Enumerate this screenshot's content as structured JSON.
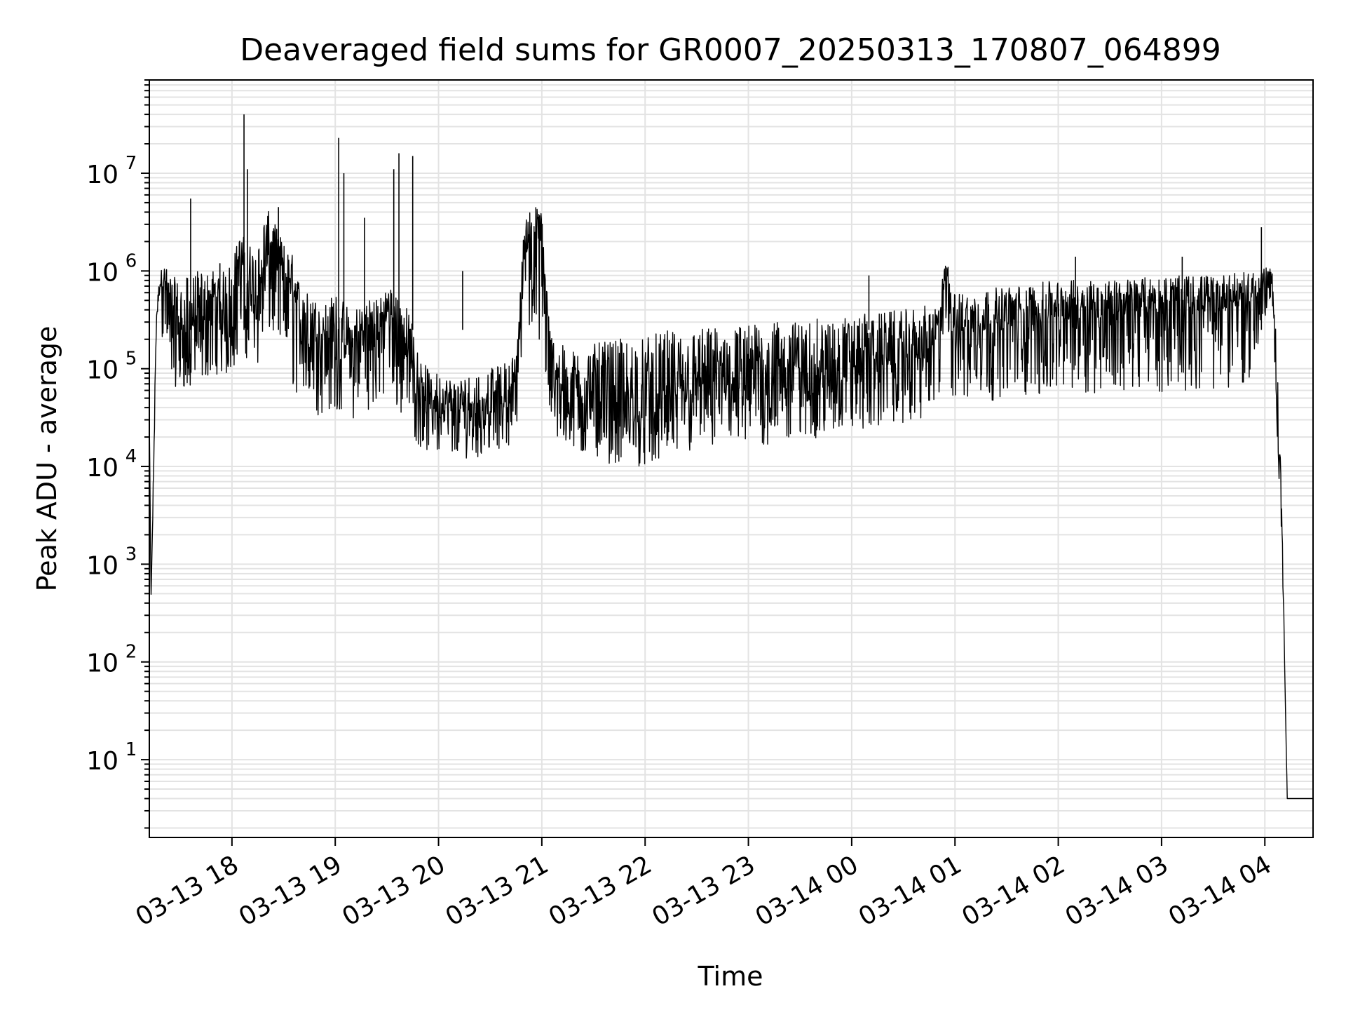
{
  "chart_data": {
    "type": "line",
    "title": "Deaveraged field sums for GR0007_20250313_170807_064899",
    "xlabel": "Time",
    "ylabel": "Peak ADU - average",
    "yscale": "log",
    "grid": true,
    "legend": "none",
    "line_color": "#000000",
    "xlim": [
      "2025-03-13 17:12",
      "2025-03-14 04:28"
    ],
    "ylim": [
      1.6,
      90000000
    ],
    "x_ticks": [
      "03-13 18",
      "03-13 19",
      "03-13 20",
      "03-13 21",
      "03-13 22",
      "03-13 23",
      "03-14 00",
      "03-14 01",
      "03-14 02",
      "03-14 03",
      "03-14 04"
    ],
    "y_ticks": [
      {
        "base": "10",
        "exp": "1"
      },
      {
        "base": "10",
        "exp": "2"
      },
      {
        "base": "10",
        "exp": "3"
      },
      {
        "base": "10",
        "exp": "4"
      },
      {
        "base": "10",
        "exp": "5"
      },
      {
        "base": "10",
        "exp": "6"
      },
      {
        "base": "10",
        "exp": "7"
      }
    ],
    "series": [
      {
        "x": [
          "2025-03-13 17:12",
          "2025-03-13 17:13",
          "2025-03-13 17:14",
          "2025-03-13 17:16",
          "2025-03-13 17:18",
          "2025-03-13 17:20",
          "2025-03-13 17:25",
          "2025-03-13 17:30",
          "2025-03-13 17:35",
          "2025-03-13 17:40",
          "2025-03-13 17:45",
          "2025-03-13 17:50",
          "2025-03-13 17:55",
          "2025-03-13 18:00",
          "2025-03-13 18:05",
          "2025-03-13 18:10",
          "2025-03-13 18:15",
          "2025-03-13 18:20",
          "2025-03-13 18:25",
          "2025-03-13 18:30",
          "2025-03-13 18:35",
          "2025-03-13 18:40",
          "2025-03-13 18:45",
          "2025-03-13 18:50",
          "2025-03-13 18:55",
          "2025-03-13 19:00",
          "2025-03-13 19:05",
          "2025-03-13 19:10",
          "2025-03-13 19:15",
          "2025-03-13 19:20",
          "2025-03-13 19:25",
          "2025-03-13 19:30",
          "2025-03-13 19:35",
          "2025-03-13 19:40",
          "2025-03-13 19:45",
          "2025-03-13 19:50",
          "2025-03-13 19:55",
          "2025-03-13 20:00",
          "2025-03-13 20:10",
          "2025-03-13 20:20",
          "2025-03-13 20:30",
          "2025-03-13 20:40",
          "2025-03-13 20:45",
          "2025-03-13 20:50",
          "2025-03-13 20:55",
          "2025-03-13 21:00",
          "2025-03-13 21:05",
          "2025-03-13 21:15",
          "2025-03-13 21:30",
          "2025-03-13 21:45",
          "2025-03-13 22:00",
          "2025-03-13 22:15",
          "2025-03-13 22:30",
          "2025-03-13 22:45",
          "2025-03-13 23:00",
          "2025-03-13 23:15",
          "2025-03-13 23:30",
          "2025-03-13 23:45",
          "2025-03-14 00:00",
          "2025-03-14 00:15",
          "2025-03-14 00:30",
          "2025-03-14 00:45",
          "2025-03-14 00:50",
          "2025-03-14 00:55",
          "2025-03-14 01:00",
          "2025-03-14 01:15",
          "2025-03-14 01:30",
          "2025-03-14 01:45",
          "2025-03-14 02:00",
          "2025-03-14 02:15",
          "2025-03-14 02:30",
          "2025-03-14 02:45",
          "2025-03-14 03:00",
          "2025-03-14 03:15",
          "2025-03-14 03:30",
          "2025-03-14 03:45",
          "2025-03-14 03:55",
          "2025-03-14 04:00",
          "2025-03-14 04:03",
          "2025-03-14 04:05",
          "2025-03-14 04:08",
          "2025-03-14 04:10",
          "2025-03-14 04:13",
          "2025-03-14 04:15",
          "2025-03-14 04:28"
        ],
        "y": [
          30000,
          450,
          3000,
          250000,
          600000,
          700000,
          300000,
          150000,
          120000,
          200000,
          250000,
          300000,
          200000,
          350000,
          800000,
          400000,
          300000,
          1500000,
          1200000,
          600000,
          500000,
          250000,
          200000,
          180000,
          150000,
          200000,
          120000,
          100000,
          150000,
          200000,
          180000,
          300000,
          250000,
          150000,
          90000,
          50000,
          40000,
          30000,
          25000,
          30000,
          35000,
          40000,
          60000,
          1500000,
          2000000,
          1500000,
          70000,
          40000,
          35000,
          30000,
          25000,
          30000,
          40000,
          50000,
          50000,
          55000,
          60000,
          70000,
          80000,
          90000,
          100000,
          130000,
          150000,
          1000000,
          200000,
          220000,
          250000,
          280000,
          300000,
          320000,
          330000,
          340000,
          350000,
          360000,
          370000,
          400000,
          500000,
          700000,
          800000,
          400000,
          10000,
          2000,
          4,
          4,
          4
        ],
        "min": [
          30000,
          450,
          2500,
          200000,
          300000,
          150000,
          70000,
          60000,
          60000,
          70000,
          80000,
          90000,
          80000,
          90000,
          150000,
          120000,
          100000,
          200000,
          200000,
          80000,
          60000,
          50000,
          40000,
          30000,
          40000,
          30000,
          40000,
          30000,
          30000,
          40000,
          40000,
          50000,
          40000,
          30000,
          20000,
          15000,
          14000,
          13000,
          12000,
          12000,
          14000,
          16000,
          20000,
          200000,
          200000,
          150000,
          20000,
          15000,
          12000,
          10000,
          10000,
          12000,
          14000,
          15000,
          15000,
          16000,
          18000,
          20000,
          22000,
          25000,
          28000,
          30000,
          35000,
          80000,
          40000,
          45000,
          50000,
          52000,
          55000,
          56000,
          57000,
          58000,
          58000,
          58000,
          60000,
          60000,
          100000,
          300000,
          500000,
          250000,
          8000,
          1500,
          4,
          4,
          4
        ],
        "max": [
          35000,
          500,
          4000,
          400000,
          900000,
          1200000,
          900000,
          800000,
          900000,
          1000000,
          1000000,
          1100000,
          1000000,
          1300000,
          2500000,
          2000000,
          1800000,
          4500000,
          3000000,
          2000000,
          1500000,
          700000,
          600000,
          500000,
          500000,
          600000,
          500000,
          400000,
          500000,
          600000,
          500000,
          700000,
          700000,
          500000,
          300000,
          120000,
          100000,
          90000,
          80000,
          90000,
          100000,
          120000,
          150000,
          3500000,
          5000000,
          4000000,
          250000,
          150000,
          180000,
          200000,
          220000,
          250000,
          260000,
          280000,
          290000,
          300000,
          310000,
          330000,
          350000,
          380000,
          400000,
          450000,
          480000,
          1300000,
          600000,
          650000,
          700000,
          750000,
          800000,
          820000,
          830000,
          850000,
          880000,
          900000,
          920000,
          950000,
          1000000,
          1100000,
          1050000,
          900000,
          60000,
          3000,
          4,
          4,
          4
        ]
      }
    ],
    "spikes": [
      {
        "x": "2025-03-13 17:36",
        "y": 5500000
      },
      {
        "x": "2025-03-13 17:53",
        "y": 1200000
      },
      {
        "x": "2025-03-13 18:02",
        "y": 1100000
      },
      {
        "x": "2025-03-13 18:07",
        "y": 40000000
      },
      {
        "x": "2025-03-13 18:09",
        "y": 11000000
      },
      {
        "x": "2025-03-13 18:27",
        "y": 4500000
      },
      {
        "x": "2025-03-13 19:02",
        "y": 23000000
      },
      {
        "x": "2025-03-13 19:05",
        "y": 10000000
      },
      {
        "x": "2025-03-13 19:17",
        "y": 3500000
      },
      {
        "x": "2025-03-13 19:34",
        "y": 11000000
      },
      {
        "x": "2025-03-13 19:37",
        "y": 16000000
      },
      {
        "x": "2025-03-13 19:45",
        "y": 15000000
      },
      {
        "x": "2025-03-13 20:14",
        "y": 1000000
      },
      {
        "x": "2025-03-14 00:10",
        "y": 900000
      },
      {
        "x": "2025-03-14 02:10",
        "y": 1400000
      },
      {
        "x": "2025-03-14 03:12",
        "y": 1400000
      },
      {
        "x": "2025-03-14 03:58",
        "y": 2800000
      }
    ]
  }
}
